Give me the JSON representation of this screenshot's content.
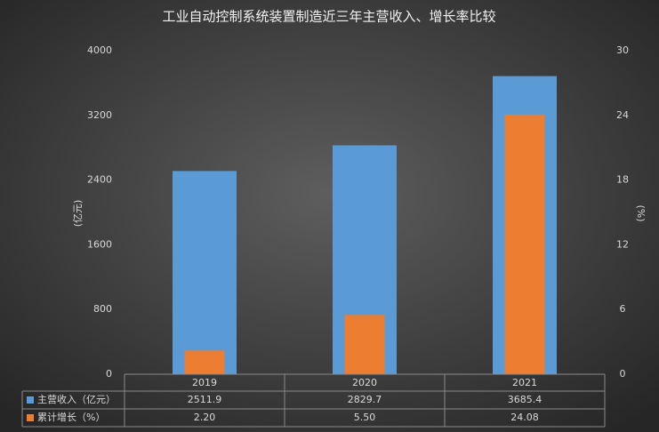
{
  "chart_data": {
    "type": "bar",
    "title": "工业自动控制系统装置制造近三年主营收入、增长率比较",
    "categories": [
      "2019",
      "2020",
      "2021"
    ],
    "series": [
      {
        "name": "主营收入（亿元）",
        "color": "#5b9bd5",
        "values": [
          2511.9,
          2829.7,
          3685.4
        ]
      },
      {
        "name": "累计增长（%）",
        "color": "#ed7d31",
        "axis": "y2",
        "values": [
          2.2,
          5.5,
          24.08
        ],
        "value_labels": [
          "2.20",
          "5.50",
          "24.08"
        ]
      }
    ],
    "ylabel": "(亿元)",
    "y2label": "(%)",
    "ylim": [
      0,
      4000
    ],
    "yticks": [
      0,
      800,
      1600,
      2400,
      3200,
      4000
    ],
    "y2lim": [
      0,
      30
    ],
    "y2ticks": [
      0,
      6,
      12,
      18,
      24,
      30
    ],
    "grid": false,
    "data_table": true
  }
}
